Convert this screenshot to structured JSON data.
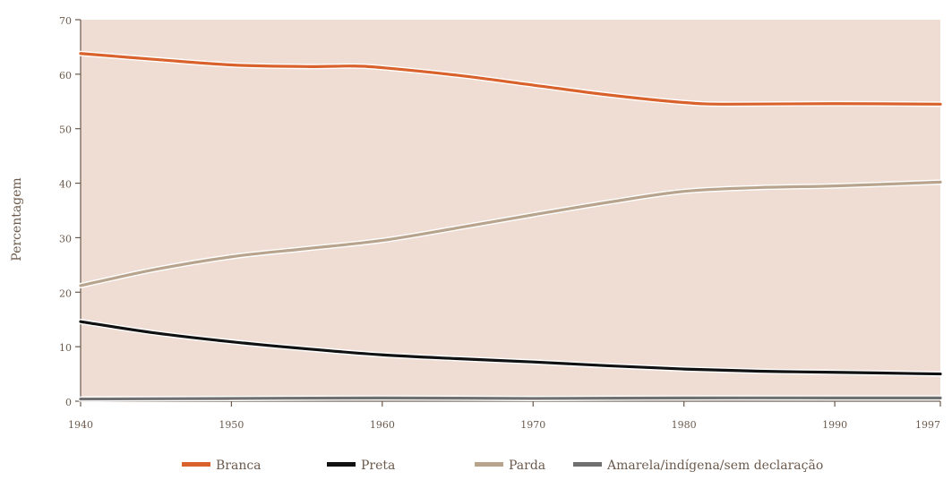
{
  "chart_data": {
    "type": "line",
    "title": "",
    "xlabel": "",
    "ylabel": "Percentagem",
    "xlim": [
      1940,
      1997
    ],
    "ylim": [
      0,
      70
    ],
    "x_ticks": [
      1940,
      1950,
      1960,
      1970,
      1980,
      1990,
      1997
    ],
    "y_ticks": [
      0,
      10,
      20,
      30,
      40,
      50,
      60,
      70
    ],
    "grid": false,
    "legend_position": "bottom",
    "background_color": "#efdcd2",
    "series": [
      {
        "name": "Branca",
        "color": "#d9612b",
        "points": [
          [
            1940,
            63.8
          ],
          [
            1945,
            62.7
          ],
          [
            1950,
            61.7
          ],
          [
            1955,
            61.4
          ],
          [
            1958,
            61.5
          ],
          [
            1960,
            61.2
          ],
          [
            1965,
            59.8
          ],
          [
            1970,
            58.0
          ],
          [
            1975,
            56.2
          ],
          [
            1980,
            54.8
          ],
          [
            1983,
            54.5
          ],
          [
            1990,
            54.6
          ],
          [
            1997,
            54.5
          ]
        ]
      },
      {
        "name": "Preta",
        "color": "#111111",
        "points": [
          [
            1940,
            14.6
          ],
          [
            1945,
            12.5
          ],
          [
            1950,
            10.9
          ],
          [
            1955,
            9.6
          ],
          [
            1960,
            8.5
          ],
          [
            1965,
            7.8
          ],
          [
            1970,
            7.2
          ],
          [
            1975,
            6.5
          ],
          [
            1980,
            5.9
          ],
          [
            1985,
            5.5
          ],
          [
            1990,
            5.3
          ],
          [
            1997,
            5.0
          ]
        ]
      },
      {
        "name": "Parda",
        "color": "#b8a48c",
        "points": [
          [
            1940,
            21.2
          ],
          [
            1945,
            24.2
          ],
          [
            1950,
            26.5
          ],
          [
            1955,
            28.0
          ],
          [
            1960,
            29.5
          ],
          [
            1965,
            31.8
          ],
          [
            1970,
            34.2
          ],
          [
            1975,
            36.5
          ],
          [
            1980,
            38.5
          ],
          [
            1985,
            39.2
          ],
          [
            1990,
            39.5
          ],
          [
            1997,
            40.2
          ]
        ]
      },
      {
        "name": "Amarela/indígena/sem declaração",
        "color": "#707070",
        "points": [
          [
            1940,
            0.4
          ],
          [
            1950,
            0.5
          ],
          [
            1960,
            0.6
          ],
          [
            1970,
            0.5
          ],
          [
            1980,
            0.6
          ],
          [
            1990,
            0.6
          ],
          [
            1997,
            0.6
          ]
        ]
      }
    ]
  }
}
